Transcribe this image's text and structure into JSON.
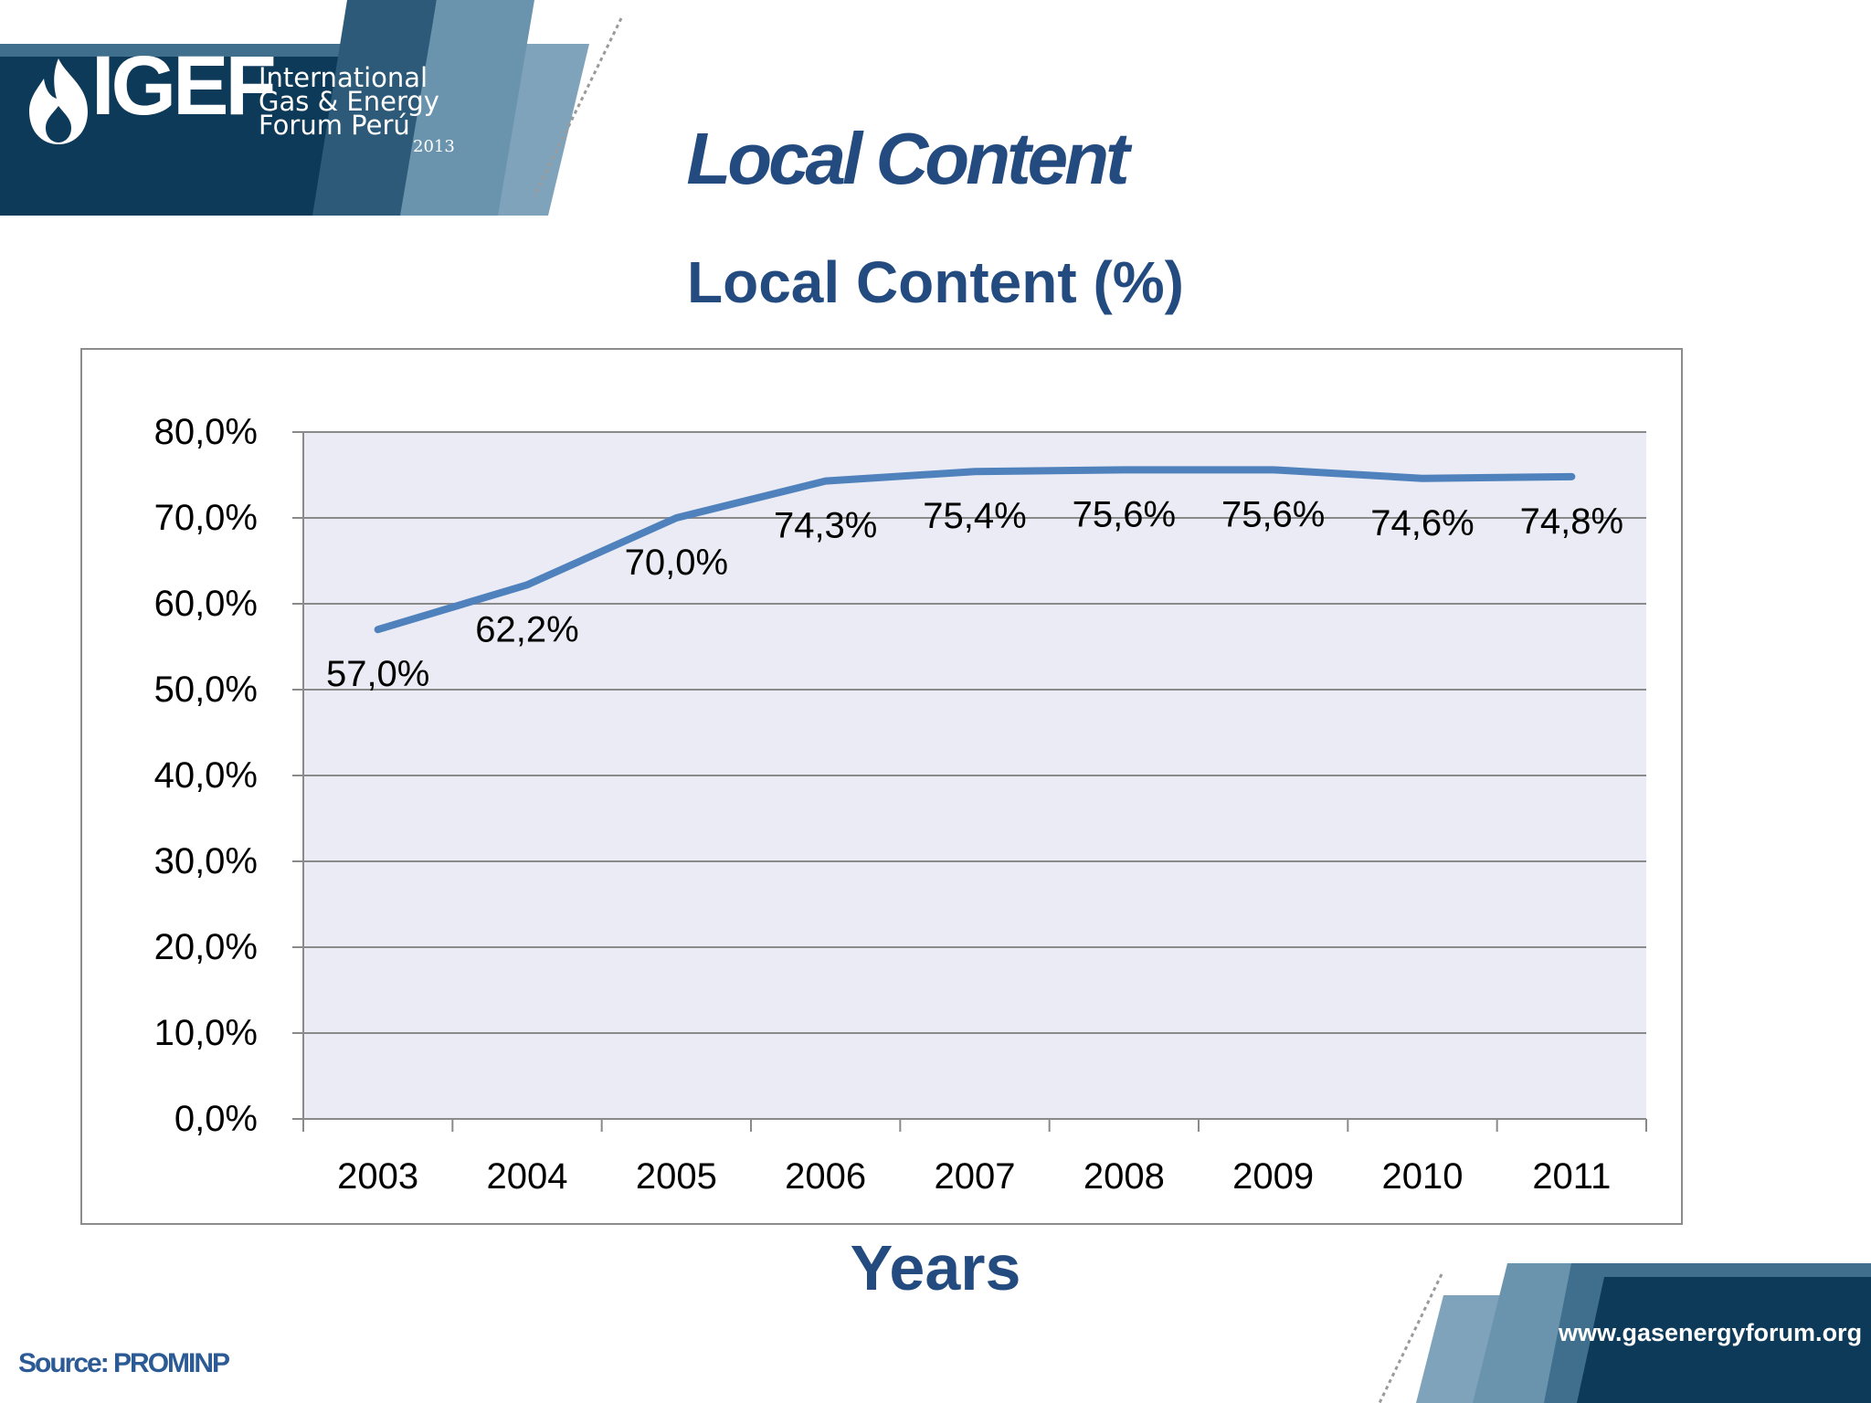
{
  "header": {
    "logo_mark": "IGEF",
    "logo_lines": [
      "International",
      "Gas & Energy",
      "Forum Perú"
    ],
    "logo_year": "2013"
  },
  "slide_title": "Local Content",
  "footer": {
    "source": "Source: PROMINP",
    "website": "www.gasenergyforum.org"
  },
  "colors": {
    "brand_dark": "#0e3a59",
    "brand_mid": "#3f6f8c",
    "brand_light": "#7fa3bb",
    "title": "#234b7f",
    "line": "#4f81bd",
    "plot_bg": "#eaebf4"
  },
  "chart_data": {
    "type": "line",
    "title": "Local Content (%)",
    "xlabel": "Years",
    "ylabel": "",
    "categories": [
      "2003",
      "2004",
      "2005",
      "2006",
      "2007",
      "2008",
      "2009",
      "2010",
      "2011"
    ],
    "series": [
      {
        "values": [
          57.0,
          62.2,
          70.0,
          74.3,
          75.4,
          75.6,
          75.6,
          74.6,
          74.8
        ],
        "labels": [
          "57,0%",
          "62,2%",
          "70,0%",
          "74,3%",
          "75,4%",
          "75,6%",
          "75,6%",
          "74,6%",
          "74,8%"
        ],
        "color": "#4f81bd"
      }
    ],
    "ylim": [
      0,
      80
    ],
    "yticks": [
      0,
      10,
      20,
      30,
      40,
      50,
      60,
      70,
      80
    ],
    "ytick_labels": [
      "0,0%",
      "10,0%",
      "20,0%",
      "30,0%",
      "40,0%",
      "50,0%",
      "60,0%",
      "70,0%",
      "80,0%"
    ],
    "grid": true,
    "legend": "none"
  }
}
